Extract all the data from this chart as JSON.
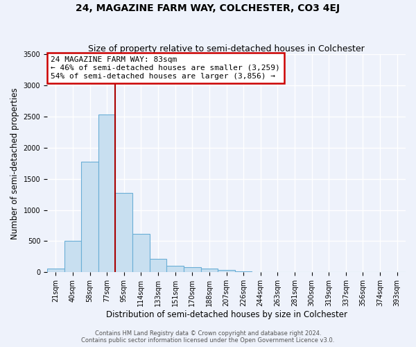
{
  "title": "24, MAGAZINE FARM WAY, COLCHESTER, CO3 4EJ",
  "subtitle": "Size of property relative to semi-detached houses in Colchester",
  "xlabel": "Distribution of semi-detached houses by size in Colchester",
  "ylabel": "Number of semi-detached properties",
  "bin_labels": [
    "21sqm",
    "40sqm",
    "58sqm",
    "77sqm",
    "95sqm",
    "114sqm",
    "133sqm",
    "151sqm",
    "170sqm",
    "188sqm",
    "207sqm",
    "226sqm",
    "244sqm",
    "263sqm",
    "281sqm",
    "300sqm",
    "319sqm",
    "337sqm",
    "356sqm",
    "374sqm",
    "393sqm"
  ],
  "bar_values": [
    55,
    500,
    1775,
    2530,
    1270,
    615,
    210,
    100,
    80,
    60,
    35,
    20,
    5,
    2,
    2,
    1,
    1,
    1,
    0,
    0,
    0
  ],
  "bar_color": "#c8dff0",
  "bar_edge_color": "#6aaed6",
  "vline_x": 3.5,
  "vline_color": "#aa0000",
  "annotation_title": "24 MAGAZINE FARM WAY: 83sqm",
  "annotation_line1": "← 46% of semi-detached houses are smaller (3,259)",
  "annotation_line2": "54% of semi-detached houses are larger (3,856) →",
  "annotation_box_color": "#ffffff",
  "annotation_box_edge": "#cc0000",
  "ylim": [
    0,
    3500
  ],
  "yticks": [
    0,
    500,
    1000,
    1500,
    2000,
    2500,
    3000,
    3500
  ],
  "footer1": "Contains HM Land Registry data © Crown copyright and database right 2024.",
  "footer2": "Contains public sector information licensed under the Open Government Licence v3.0.",
  "background_color": "#eef2fb",
  "grid_color": "#ffffff",
  "title_fontsize": 10,
  "subtitle_fontsize": 9,
  "axis_label_fontsize": 8.5,
  "tick_fontsize": 7,
  "annotation_fontsize": 8,
  "footer_fontsize": 6
}
